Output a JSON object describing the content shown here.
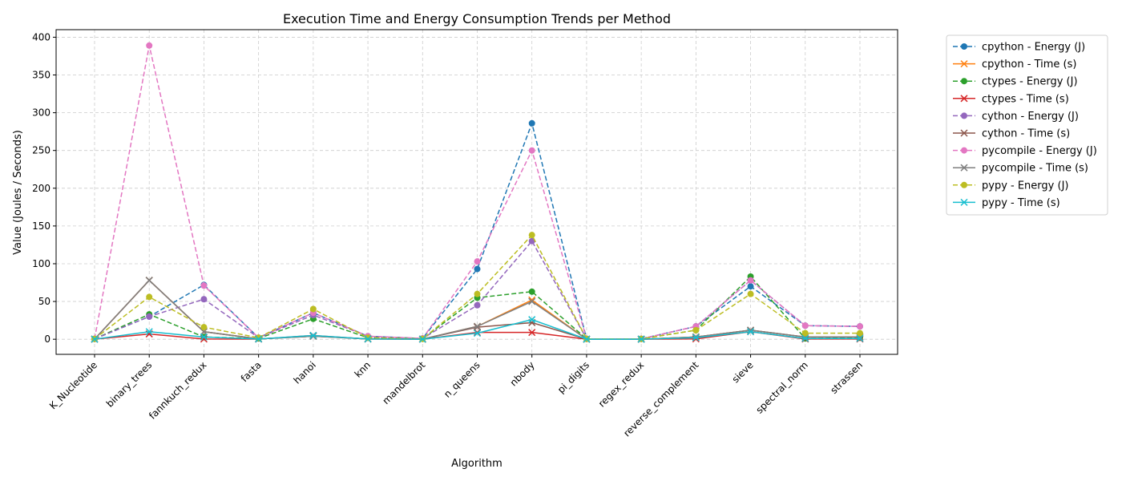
{
  "chart_data": {
    "type": "line",
    "title": "Execution Time and Energy Consumption Trends per Method",
    "xlabel": "Algorithm",
    "ylabel": "Value (Joules / Seconds)",
    "ylim": [
      -20,
      410
    ],
    "yticks": [
      0,
      50,
      100,
      150,
      200,
      250,
      300,
      350,
      400
    ],
    "grid": true,
    "legend_position": "outside-right",
    "categories": [
      "K_Nucleotide",
      "binary_trees",
      "fannkuch_redux",
      "fasta",
      "hanoi",
      "knn",
      "mandelbrot",
      "n_queens",
      "nbody",
      "pi_digits",
      "regex_redux",
      "reverse_complement",
      "sieve",
      "spectral_norm",
      "strassen"
    ],
    "series": [
      {
        "name": "cpython - Energy (J)",
        "color": "#1f77b4",
        "style": "dashed",
        "marker": "circle",
        "values": [
          0.5,
          30,
          72,
          2,
          35,
          4,
          1,
          93,
          286,
          0.5,
          0.5,
          17,
          70,
          18,
          17
        ]
      },
      {
        "name": "cpython - Time (s)",
        "color": "#ff7f0e",
        "style": "solid",
        "marker": "x",
        "values": [
          0.1,
          78,
          10,
          0.5,
          4,
          0.5,
          0.2,
          17,
          52,
          0.1,
          0.1,
          3,
          12,
          3,
          3
        ]
      },
      {
        "name": "ctypes - Energy (J)",
        "color": "#2ca02c",
        "style": "dashed",
        "marker": "circle",
        "values": [
          0.5,
          33,
          3,
          1,
          27,
          2,
          0.5,
          55,
          63,
          0.5,
          0.5,
          12,
          83,
          1,
          2
        ]
      },
      {
        "name": "ctypes - Time (s)",
        "color": "#d62728",
        "style": "solid",
        "marker": "x",
        "values": [
          0.1,
          7,
          0.3,
          0.2,
          5,
          0.3,
          0.1,
          9,
          9,
          0.1,
          0.1,
          0.5,
          10,
          0.3,
          0.3
        ]
      },
      {
        "name": "cython - Energy (J)",
        "color": "#9467bd",
        "style": "dashed",
        "marker": "circle",
        "values": [
          0.5,
          30,
          53,
          2,
          32,
          4,
          1,
          45,
          130,
          0.5,
          0.5,
          17,
          78,
          18,
          17
        ]
      },
      {
        "name": "cython - Time (s)",
        "color": "#8c564b",
        "style": "solid",
        "marker": "x",
        "values": [
          0.1,
          78,
          10,
          0.5,
          4,
          0.5,
          0.2,
          16,
          22,
          0.1,
          0.1,
          3,
          12,
          3,
          3
        ]
      },
      {
        "name": "pycompile - Energy (J)",
        "color": "#e377c2",
        "style": "dashed",
        "marker": "circle",
        "values": [
          0.5,
          389,
          71,
          2,
          35,
          4,
          1,
          103,
          250,
          0.5,
          0.5,
          17,
          78,
          18,
          17
        ]
      },
      {
        "name": "pycompile - Time (s)",
        "color": "#7f7f7f",
        "style": "solid",
        "marker": "x",
        "values": [
          0.1,
          78,
          10,
          0.5,
          4,
          0.5,
          0.2,
          17,
          50,
          0.1,
          0.1,
          3,
          12,
          3,
          3
        ]
      },
      {
        "name": "pypy - Energy (J)",
        "color": "#bcbd22",
        "style": "dashed",
        "marker": "circle",
        "values": [
          0.5,
          56,
          16,
          2,
          40,
          2,
          0.5,
          60,
          138,
          0.5,
          0.5,
          12,
          60,
          8,
          8
        ]
      },
      {
        "name": "pypy - Time (s)",
        "color": "#17becf",
        "style": "solid",
        "marker": "x",
        "values": [
          0.1,
          10,
          3,
          0.3,
          5,
          0.3,
          0.1,
          8,
          26,
          0.1,
          0.1,
          2,
          10,
          1,
          1
        ]
      }
    ]
  }
}
